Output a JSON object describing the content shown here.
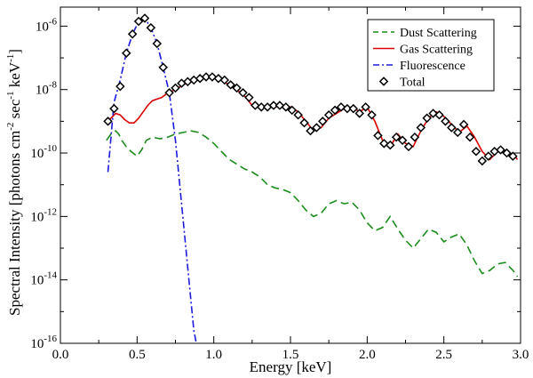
{
  "chart_data": {
    "type": "line",
    "title": "",
    "xlabel": "Energy [keV]",
    "ylabel_parts": {
      "main": "Spectral Intensity [photons cm",
      "exp1": "-2",
      "mid1": " sec",
      "exp2": "-1",
      "mid2": " keV",
      "exp3": "-1",
      "end": "]"
    },
    "xlim": [
      0.0,
      3.0
    ],
    "ylim_log10": [
      -16,
      -5.4
    ],
    "yscale": "log",
    "x_ticks": [
      0.0,
      0.5,
      1.0,
      1.5,
      2.0,
      2.5,
      3.0
    ],
    "x_tick_labels": [
      "0.0",
      "0.5",
      "1.0",
      "1.5",
      "2.0",
      "2.5",
      "3.0"
    ],
    "y_ticks": [
      {
        "base": "10",
        "exp": "-6",
        "log": -6
      },
      {
        "base": "10",
        "exp": "-8",
        "log": -8
      },
      {
        "base": "10",
        "exp": "-10",
        "log": -10
      },
      {
        "base": "10",
        "exp": "-12",
        "log": -12
      },
      {
        "base": "10",
        "exp": "-14",
        "log": -14
      },
      {
        "base": "10",
        "exp": "-16",
        "log": -16
      }
    ],
    "legend_position": "top-right",
    "series": [
      {
        "name": "Dust Scattering",
        "color": "#1a8c1a",
        "style": "dashed",
        "x": [
          0.3,
          0.33,
          0.36,
          0.38,
          0.4,
          0.43,
          0.46,
          0.5,
          0.53,
          0.56,
          0.6,
          0.65,
          0.7,
          0.75,
          0.8,
          0.85,
          0.9,
          0.95,
          1.0,
          1.05,
          1.1,
          1.15,
          1.2,
          1.25,
          1.3,
          1.35,
          1.4,
          1.45,
          1.5,
          1.55,
          1.6,
          1.65,
          1.7,
          1.75,
          1.8,
          1.85,
          1.9,
          1.95,
          2.0,
          2.05,
          2.1,
          2.15,
          2.2,
          2.25,
          2.3,
          2.35,
          2.4,
          2.45,
          2.5,
          2.55,
          2.6,
          2.65,
          2.7,
          2.75,
          2.8,
          2.85,
          2.9,
          2.95,
          2.98
        ],
        "log10_y": [
          -9.6,
          -9.4,
          -9.3,
          -9.4,
          -9.6,
          -9.8,
          -9.95,
          -10.1,
          -9.9,
          -9.6,
          -9.5,
          -9.55,
          -9.5,
          -9.4,
          -9.35,
          -9.3,
          -9.35,
          -9.5,
          -9.7,
          -9.95,
          -10.2,
          -10.35,
          -10.5,
          -10.6,
          -10.75,
          -11.0,
          -11.1,
          -11.15,
          -11.25,
          -11.5,
          -11.8,
          -12.0,
          -11.9,
          -11.6,
          -11.5,
          -11.6,
          -11.55,
          -11.8,
          -12.2,
          -12.45,
          -12.35,
          -12.0,
          -12.4,
          -12.75,
          -13.0,
          -12.7,
          -12.4,
          -12.5,
          -12.8,
          -12.65,
          -12.55,
          -12.9,
          -13.4,
          -13.8,
          -13.7,
          -13.5,
          -13.45,
          -13.7,
          -13.9
        ]
      },
      {
        "name": "Gas Scattering",
        "color": "#dd0000",
        "style": "solid",
        "x": [
          0.3,
          0.33,
          0.36,
          0.39,
          0.42,
          0.45,
          0.48,
          0.51,
          0.54,
          0.57,
          0.6,
          0.63,
          0.66,
          0.7,
          0.75,
          0.8,
          0.85,
          0.9,
          0.95,
          1.0,
          1.05,
          1.1,
          1.15,
          1.2,
          1.25,
          1.3,
          1.35,
          1.4,
          1.45,
          1.5,
          1.55,
          1.6,
          1.65,
          1.7,
          1.75,
          1.8,
          1.85,
          1.9,
          1.95,
          2.0,
          2.05,
          2.1,
          2.15,
          2.2,
          2.25,
          2.3,
          2.35,
          2.4,
          2.45,
          2.5,
          2.55,
          2.6,
          2.65,
          2.7,
          2.75,
          2.8,
          2.85,
          2.9,
          2.95,
          2.98
        ],
        "log10_y": [
          -9.0,
          -8.9,
          -8.75,
          -8.8,
          -8.95,
          -9.05,
          -9.05,
          -8.9,
          -8.7,
          -8.5,
          -8.35,
          -8.3,
          -8.25,
          -8.1,
          -8.0,
          -7.85,
          -7.75,
          -7.65,
          -7.6,
          -7.6,
          -7.7,
          -7.85,
          -8.0,
          -8.2,
          -8.5,
          -8.55,
          -8.5,
          -8.55,
          -8.5,
          -8.55,
          -8.7,
          -9.0,
          -9.3,
          -9.2,
          -8.9,
          -8.75,
          -8.6,
          -8.55,
          -8.7,
          -8.55,
          -9.0,
          -9.6,
          -9.8,
          -9.4,
          -9.7,
          -9.8,
          -9.3,
          -8.9,
          -8.7,
          -8.85,
          -9.1,
          -9.35,
          -9.15,
          -9.5,
          -9.95,
          -10.2,
          -9.95,
          -9.95,
          -10.05,
          -10.2
        ]
      },
      {
        "name": "Fluorescence",
        "color": "#1a1add",
        "style": "dashdot",
        "x": [
          0.31,
          0.35,
          0.39,
          0.43,
          0.47,
          0.51,
          0.55,
          0.59,
          0.63,
          0.67,
          0.71,
          0.75,
          0.79,
          0.83,
          0.87,
          0.89
        ],
        "log10_y": [
          -10.6,
          -8.4,
          -7.7,
          -6.85,
          -6.25,
          -5.85,
          -5.75,
          -6.05,
          -6.55,
          -7.3,
          -8.1,
          -9.6,
          -11.6,
          -13.6,
          -15.6,
          -16.1
        ]
      },
      {
        "name": "Total",
        "color": "#000000",
        "style": "markers",
        "x": [
          0.31,
          0.35,
          0.39,
          0.43,
          0.47,
          0.51,
          0.55,
          0.59,
          0.63,
          0.67,
          0.71,
          0.75,
          0.79,
          0.83,
          0.87,
          0.91,
          0.95,
          0.99,
          1.03,
          1.07,
          1.11,
          1.15,
          1.19,
          1.23,
          1.27,
          1.31,
          1.35,
          1.39,
          1.43,
          1.47,
          1.51,
          1.55,
          1.59,
          1.63,
          1.67,
          1.71,
          1.75,
          1.79,
          1.83,
          1.87,
          1.91,
          1.95,
          1.99,
          2.03,
          2.07,
          2.11,
          2.15,
          2.19,
          2.23,
          2.27,
          2.31,
          2.35,
          2.39,
          2.43,
          2.47,
          2.51,
          2.55,
          2.59,
          2.63,
          2.67,
          2.71,
          2.75,
          2.79,
          2.83,
          2.87,
          2.91,
          2.95
        ],
        "log10_y": [
          -9.0,
          -8.6,
          -7.9,
          -6.85,
          -6.25,
          -5.85,
          -5.75,
          -6.05,
          -6.55,
          -7.3,
          -8.1,
          -7.95,
          -7.8,
          -7.75,
          -7.7,
          -7.65,
          -7.6,
          -7.6,
          -7.65,
          -7.7,
          -7.85,
          -7.95,
          -8.1,
          -8.25,
          -8.5,
          -8.55,
          -8.55,
          -8.5,
          -8.5,
          -8.55,
          -8.65,
          -8.8,
          -9.05,
          -9.3,
          -9.2,
          -9.0,
          -8.8,
          -8.65,
          -8.55,
          -8.6,
          -8.6,
          -8.75,
          -8.55,
          -8.8,
          -9.45,
          -9.7,
          -9.75,
          -9.5,
          -9.6,
          -9.8,
          -9.5,
          -9.2,
          -8.9,
          -8.75,
          -8.8,
          -9.0,
          -9.2,
          -9.35,
          -9.1,
          -9.5,
          -9.95,
          -10.25,
          -10.1,
          -9.95,
          -9.9,
          -10.0,
          -10.1
        ]
      }
    ]
  }
}
